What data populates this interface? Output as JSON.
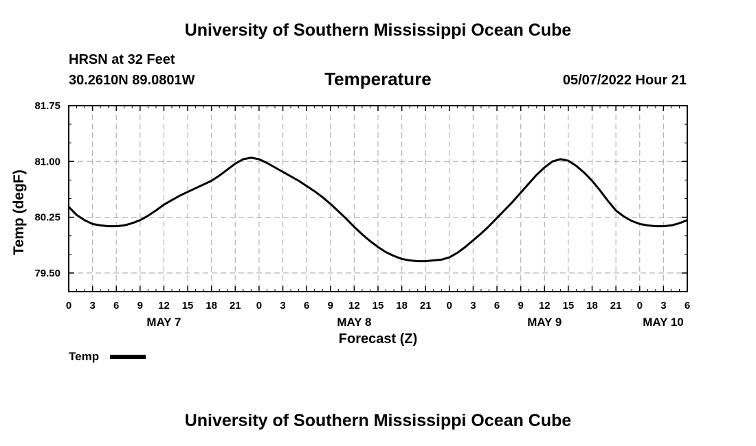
{
  "header": {
    "top_title": "University of Southern Mississippi Ocean Cube",
    "station": "HRSN at 32 Feet",
    "coords": "30.2610N  89.0801W",
    "variable_title": "Temperature",
    "datetime": "05/07/2022 Hour 21",
    "bottom_title": "University of Southern Mississippi Ocean Cube"
  },
  "chart_data": {
    "type": "line",
    "title": "Temperature",
    "xlabel": "Forecast (Z)",
    "ylabel": "Temp (degF)",
    "ylim": [
      79.25,
      81.75
    ],
    "yticks": [
      "81.75",
      "81.00",
      "80.25",
      "79.50"
    ],
    "xlim": [
      0,
      78
    ],
    "x_tick_labels": [
      "0",
      "3",
      "6",
      "9",
      "12",
      "15",
      "18",
      "21",
      "0",
      "3",
      "6",
      "9",
      "12",
      "15",
      "18",
      "21",
      "0",
      "3",
      "6",
      "9",
      "12",
      "15",
      "18",
      "21",
      "0",
      "3",
      "6"
    ],
    "day_labels": [
      {
        "label": "MAY 7",
        "hour": 12
      },
      {
        "label": "MAY 8",
        "hour": 36
      },
      {
        "label": "MAY 9",
        "hour": 60
      },
      {
        "label": "MAY 10",
        "hour": 78
      }
    ],
    "grid": true,
    "legend": {
      "label": "Temp",
      "placement": "bottom-left"
    },
    "series": [
      {
        "name": "Temp",
        "x": [
          0,
          1,
          2,
          3,
          4,
          5,
          6,
          7,
          8,
          9,
          10,
          11,
          12,
          13,
          14,
          15,
          16,
          17,
          18,
          19,
          20,
          21,
          22,
          23,
          24,
          25,
          26,
          27,
          28,
          29,
          30,
          31,
          32,
          33,
          34,
          35,
          36,
          37,
          38,
          39,
          40,
          41,
          42,
          43,
          44,
          45,
          46,
          47,
          48,
          49,
          50,
          51,
          52,
          53,
          54,
          55,
          56,
          57,
          58,
          59,
          60,
          61,
          62,
          63,
          64,
          65,
          66,
          67,
          68,
          69,
          70,
          71,
          72,
          73,
          74,
          75,
          76,
          77,
          78
        ],
        "values": [
          80.39,
          80.28,
          80.21,
          80.16,
          80.14,
          80.13,
          80.13,
          80.14,
          80.17,
          80.21,
          80.27,
          80.34,
          80.42,
          80.48,
          80.54,
          80.59,
          80.64,
          80.69,
          80.74,
          80.81,
          80.89,
          80.97,
          81.03,
          81.05,
          81.03,
          80.98,
          80.92,
          80.86,
          80.8,
          80.74,
          80.67,
          80.6,
          80.52,
          80.43,
          80.33,
          80.23,
          80.12,
          80.02,
          79.93,
          79.85,
          79.78,
          79.73,
          79.69,
          79.67,
          79.66,
          79.66,
          79.67,
          79.68,
          79.71,
          79.77,
          79.85,
          79.94,
          80.03,
          80.13,
          80.24,
          80.35,
          80.46,
          80.58,
          80.7,
          80.82,
          80.92,
          81.0,
          81.03,
          81.01,
          80.94,
          80.85,
          80.74,
          80.61,
          80.47,
          80.34,
          80.26,
          80.2,
          80.16,
          80.14,
          80.13,
          80.13,
          80.14,
          80.17,
          80.21
        ]
      }
    ]
  }
}
